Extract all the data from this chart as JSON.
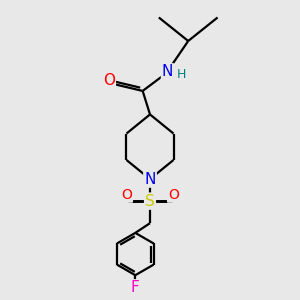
{
  "background_color": "#e8e8e8",
  "atom_colors": {
    "C": "#000000",
    "N": "#0000ee",
    "O": "#ff0000",
    "S": "#cccc00",
    "F": "#ff00cc",
    "H": "#008080"
  },
  "bond_color": "#000000",
  "bond_lw": 1.6,
  "font_size": 11,
  "font_size_H": 9,
  "xlim": [
    0,
    10
  ],
  "ylim": [
    0,
    10
  ]
}
